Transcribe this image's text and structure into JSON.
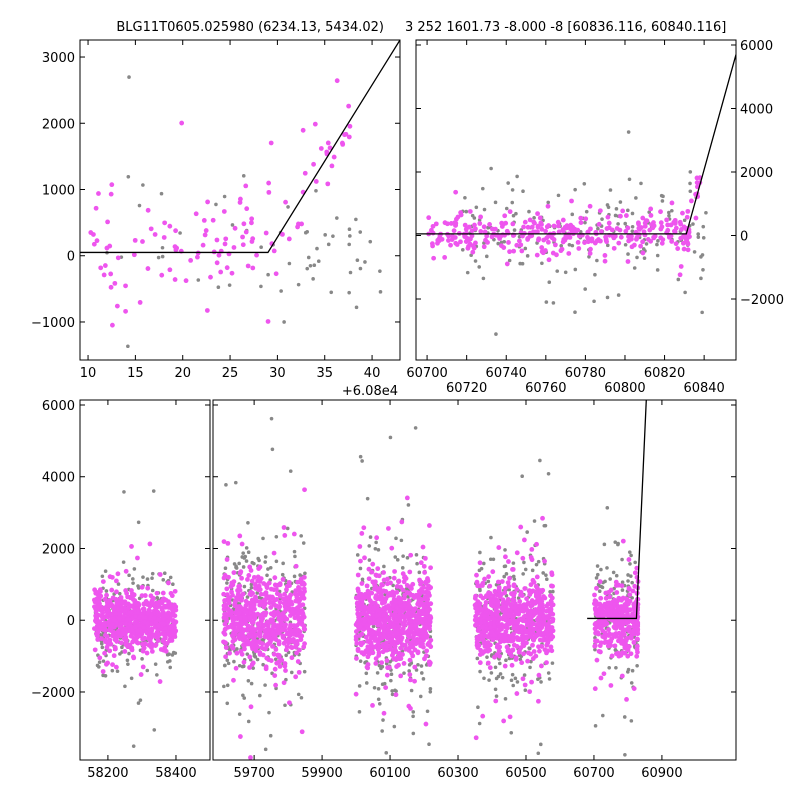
{
  "chart_data": [
    {
      "type": "scatter",
      "title": "BLG11T0605.025980 (6234.13, 5434.02)",
      "xlim": [
        9.15,
        42.95
      ],
      "ylim": [
        -1574,
        3257
      ],
      "xticks": [
        "10",
        "15",
        "20",
        "25",
        "30",
        "35",
        "40"
      ],
      "xtick_values": [
        10,
        15,
        20,
        25,
        30,
        35,
        40
      ],
      "yticks": [
        "−1000",
        "0",
        "1000",
        "2000",
        "3000"
      ],
      "ytick_values": [
        -1000,
        0,
        1000,
        2000,
        3000
      ],
      "model_line": [
        [
          9.15,
          50
        ],
        [
          29,
          50
        ],
        [
          42.95,
          3257
        ]
      ],
      "clusters": [
        {
          "name": "magenta",
          "color": "#ee55ee",
          "x": [
            10,
            30
          ],
          "ymean": 150,
          "ysd": 380,
          "n": 90
        },
        {
          "name": "magenta-rise",
          "color": "#ee55ee",
          "x": [
            29,
            38
          ],
          "trend": "model",
          "ysd": 250,
          "n": 30
        },
        {
          "name": "gray",
          "color": "#888888",
          "x": [
            12,
            41
          ],
          "ymean": 100,
          "ysd": 550,
          "n": 60
        }
      ]
    },
    {
      "type": "scatter",
      "title": "3 252 1601.73 -8.000 -8 [60836.116, 60840.116]",
      "xlim": [
        60694.4,
        60856.1
      ],
      "ylim": [
        -3921,
        6157
      ],
      "xticks": [
        "60700",
        "60720",
        "60740",
        "60760",
        "60780",
        "60800",
        "60820",
        "60840"
      ],
      "xtick_values": [
        60700,
        60720,
        60740,
        60760,
        60780,
        60800,
        60820,
        60840
      ],
      "yticks": [
        "−2000",
        "0",
        "2000",
        "4000",
        "6000"
      ],
      "ytick_values": [
        -2000,
        0,
        2000,
        4000,
        6000
      ],
      "y_axis_side": "right",
      "offset_label": "+6.08e4",
      "model_line": [
        [
          60694.4,
          50
        ],
        [
          60831,
          50
        ],
        [
          60856.1,
          5700
        ]
      ],
      "clusters": [
        {
          "name": "magenta",
          "color": "#ee55ee",
          "x": [
            60700,
            60833
          ],
          "ymean": 50,
          "ysd": 300,
          "n": 320
        },
        {
          "name": "magenta-rise",
          "color": "#ee55ee",
          "x": [
            60830,
            60838
          ],
          "trend": "model",
          "ysd": 300,
          "n": 25
        },
        {
          "name": "gray",
          "color": "#888888",
          "x": [
            60718,
            60842
          ],
          "ymean": 0,
          "ysd": 700,
          "n": 180
        }
      ]
    },
    {
      "type": "scatter",
      "title": "",
      "xlim_left": [
        58118,
        58500
      ],
      "xlim_right": [
        59579,
        61118
      ],
      "ylim": [
        -3896,
        6139
      ],
      "xticks": [
        "58200",
        "58400",
        "59700",
        "59900",
        "60100",
        "60300",
        "60500",
        "60700",
        "60900"
      ],
      "xtick_values": [
        58200,
        58400,
        59700,
        59900,
        60100,
        60300,
        60500,
        60700,
        60900
      ],
      "yticks": [
        "−2000",
        "0",
        "2000",
        "4000",
        "6000"
      ],
      "ytick_values": [
        -2000,
        0,
        2000,
        4000,
        6000
      ],
      "model_line": [
        [
          60680,
          50
        ],
        [
          60825,
          50
        ],
        [
          60854,
          6139
        ]
      ],
      "seasons": [
        {
          "x": [
            58160,
            58400
          ],
          "n": 900,
          "ysd": 500
        },
        {
          "x": [
            59610,
            59850
          ],
          "n": 900,
          "ysd": 800
        },
        {
          "x": [
            60000,
            60220
          ],
          "n": 1000,
          "ysd": 800
        },
        {
          "x": [
            60350,
            60580
          ],
          "n": 900,
          "ysd": 700
        },
        {
          "x": [
            60700,
            60830
          ],
          "n": 450,
          "ysd": 600
        }
      ],
      "colors": {
        "magenta": "#ee55ee",
        "gray": "#888888"
      }
    }
  ]
}
